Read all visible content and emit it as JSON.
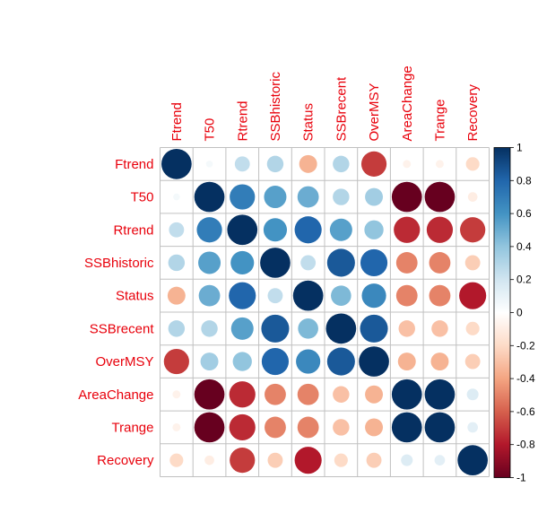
{
  "chart_data": {
    "type": "heatmap",
    "title": "",
    "variables": [
      "Ftrend",
      "T50",
      "Rtrend",
      "SSBhistoric",
      "Status",
      "SSBrecent",
      "OverMSY",
      "AreaChange",
      "Trange",
      "Recovery"
    ],
    "matrix": [
      [
        1.0,
        0.05,
        0.25,
        0.3,
        -0.35,
        0.3,
        -0.7,
        -0.07,
        -0.07,
        -0.2
      ],
      [
        0.05,
        1.0,
        0.7,
        0.55,
        0.5,
        0.3,
        0.35,
        -1.0,
        -1.0,
        -0.1
      ],
      [
        0.25,
        0.7,
        1.0,
        0.6,
        0.8,
        0.55,
        0.4,
        -0.75,
        -0.75,
        -0.7
      ],
      [
        0.3,
        0.55,
        0.6,
        1.0,
        0.25,
        0.85,
        0.8,
        -0.5,
        -0.5,
        -0.25
      ],
      [
        -0.35,
        0.5,
        0.8,
        0.25,
        1.0,
        0.45,
        0.65,
        -0.5,
        -0.5,
        -0.8
      ],
      [
        0.3,
        0.3,
        0.55,
        0.85,
        0.45,
        1.0,
        0.85,
        -0.3,
        -0.3,
        -0.2
      ],
      [
        -0.7,
        0.35,
        0.4,
        0.8,
        0.65,
        0.85,
        1.0,
        -0.35,
        -0.35,
        -0.25
      ],
      [
        -0.07,
        -1.0,
        -0.75,
        -0.5,
        -0.5,
        -0.3,
        -0.35,
        1.0,
        1.0,
        0.15
      ],
      [
        -0.07,
        -1.0,
        -0.75,
        -0.5,
        -0.5,
        -0.3,
        -0.35,
        1.0,
        1.0,
        0.12
      ],
      [
        -0.2,
        -0.1,
        -0.7,
        -0.25,
        -0.8,
        -0.2,
        -0.25,
        0.15,
        0.12,
        1.0
      ]
    ],
    "colorbar": {
      "range": [
        -1,
        1
      ],
      "ticks": [
        1,
        0.8,
        0.6,
        0.4,
        0.2,
        0,
        -0.2,
        -0.4,
        -0.6,
        -0.8,
        -1
      ],
      "tick_labels": [
        "1",
        "0.8",
        "0.6",
        "0.4",
        "0.2",
        "0",
        "-0.2",
        "-0.4",
        "-0.6",
        "-0.8",
        "-1"
      ],
      "palette": [
        "#67001f",
        "#b2182b",
        "#d6604d",
        "#f4a582",
        "#fddbc7",
        "#ffffff",
        "#d1e5f0",
        "#92c5de",
        "#4393c3",
        "#2166ac",
        "#053061"
      ]
    },
    "label_color": "#e8000b",
    "grid_color": "#c0c0c0"
  }
}
